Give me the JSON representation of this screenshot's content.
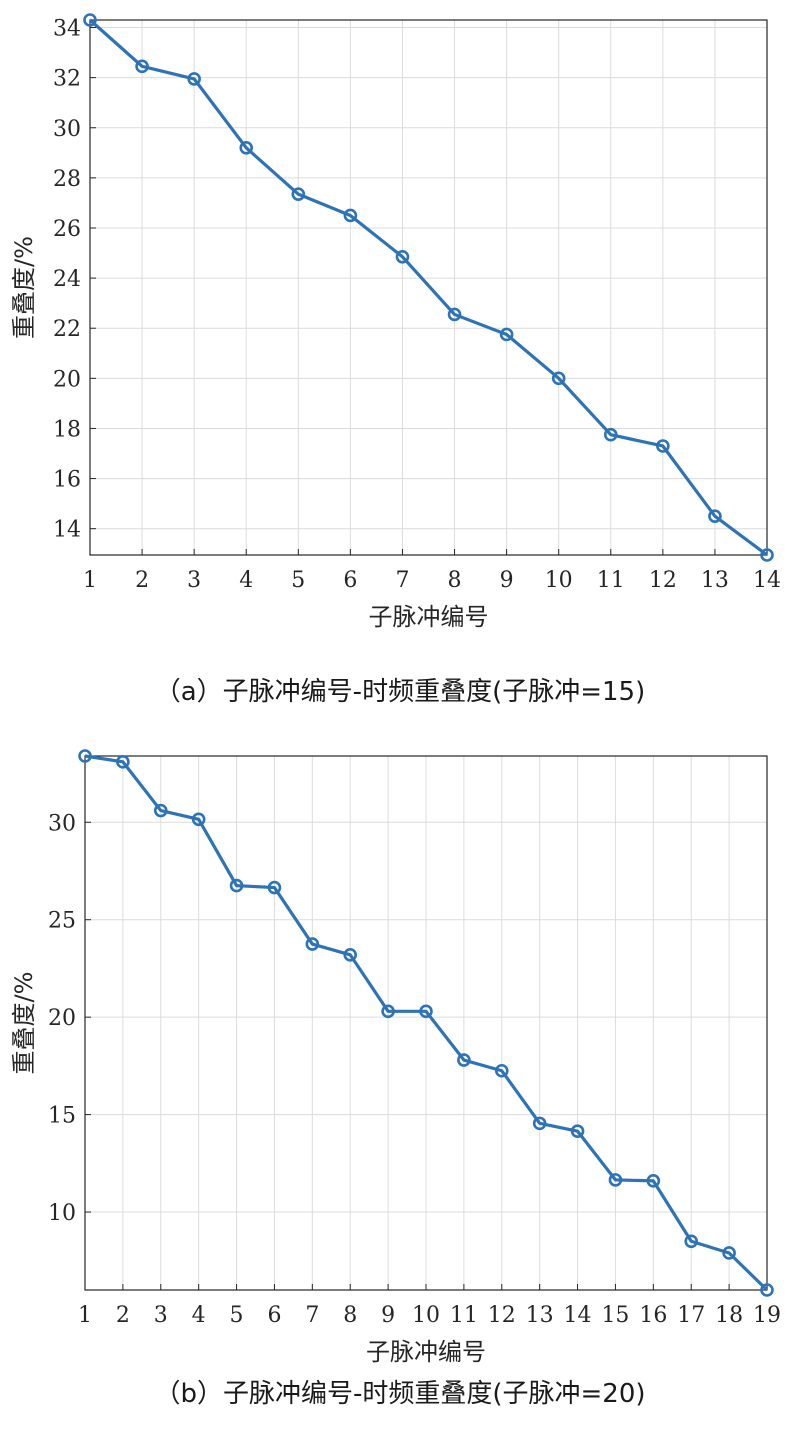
{
  "chart_data": [
    {
      "type": "line",
      "caption": "（a）子脉冲编号-时频重叠度(子脉冲=15)",
      "xlabel": "子脉冲编号",
      "ylabel": "重叠度/%",
      "x": [
        1,
        2,
        3,
        4,
        5,
        6,
        7,
        8,
        9,
        10,
        11,
        12,
        13,
        14
      ],
      "series": [
        {
          "values": [
            34.3,
            32.45,
            31.95,
            29.2,
            27.35,
            26.5,
            24.85,
            22.55,
            21.75,
            20.0,
            17.75,
            17.3,
            14.5,
            12.95
          ]
        }
      ],
      "xlim": [
        1,
        14
      ],
      "ylim": [
        12.95,
        34.3
      ],
      "xticks": [
        1,
        2,
        3,
        4,
        5,
        6,
        7,
        8,
        9,
        10,
        11,
        12,
        13,
        14
      ],
      "yticks": [
        14,
        16,
        18,
        20,
        22,
        24,
        26,
        28,
        30,
        32,
        34
      ],
      "grid": true,
      "color": "#2e73b5"
    },
    {
      "type": "line",
      "caption": "（b）子脉冲编号-时频重叠度(子脉冲=20)",
      "xlabel": "子脉冲编号",
      "ylabel": "重叠度/%",
      "x": [
        1,
        2,
        3,
        4,
        5,
        6,
        7,
        8,
        9,
        10,
        11,
        12,
        13,
        14,
        15,
        16,
        17,
        18,
        19
      ],
      "series": [
        {
          "values": [
            33.4,
            33.1,
            30.6,
            30.15,
            26.75,
            26.65,
            23.75,
            23.2,
            20.3,
            20.3,
            17.8,
            17.25,
            14.55,
            14.15,
            11.65,
            11.6,
            8.5,
            7.9,
            6.0
          ]
        }
      ],
      "xlim": [
        1,
        19
      ],
      "ylim": [
        6.0,
        33.4
      ],
      "xticks": [
        1,
        2,
        3,
        4,
        5,
        6,
        7,
        8,
        9,
        10,
        11,
        12,
        13,
        14,
        15,
        16,
        17,
        18,
        19
      ],
      "yticks": [
        10,
        15,
        20,
        25,
        30
      ],
      "grid": true,
      "color": "#2e73b5"
    }
  ]
}
